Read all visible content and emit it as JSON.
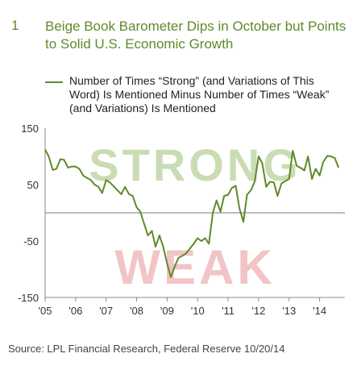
{
  "figure_number": "1",
  "title": "Beige Book Barometer Dips in October but Points to Solid U.S. Economic Growth",
  "legend_label": "Number of Times “Strong” (and Variations of This Word) Is Mentioned Minus Number of Times “Weak” (and Variations) Is Mentioned",
  "source": "Source: LPL Financial Research, Federal Reserve   10/20/14",
  "watermarks": {
    "strong": "STRONG",
    "weak": "WEAK"
  },
  "colors": {
    "line": "#5f8a2a",
    "strong_watermark": "#c9dcb3",
    "weak_watermark": "#f1c5c5",
    "axis": "#888888",
    "zero_line": "#7a7a7a"
  },
  "chart_data": {
    "type": "line",
    "title": "Beige Book Barometer Dips in October but Points to Solid U.S. Economic Growth",
    "xlabel": "",
    "ylabel": "",
    "xlim": [
      2005,
      2014.83
    ],
    "ylim": [
      -150,
      150
    ],
    "yticks": [
      150,
      50,
      -50,
      -150
    ],
    "xticks": [
      {
        "v": 2005,
        "label": "'05"
      },
      {
        "v": 2006,
        "label": "'06"
      },
      {
        "v": 2007,
        "label": "'07"
      },
      {
        "v": 2008,
        "label": "'08"
      },
      {
        "v": 2009,
        "label": "'09"
      },
      {
        "v": 2010,
        "label": "'10"
      },
      {
        "v": 2011,
        "label": "'11"
      },
      {
        "v": 2012,
        "label": "'12"
      },
      {
        "v": 2013,
        "label": "'13"
      },
      {
        "v": 2014,
        "label": "'14"
      }
    ],
    "zero_line": 0,
    "series": [
      {
        "name": "Number of Times “Strong” (and Variations of This Word) Is Mentioned Minus Number of Times “Weak” (and Variations) Is Mentioned",
        "points": [
          [
            2005.0,
            112
          ],
          [
            2005.12,
            100
          ],
          [
            2005.25,
            76
          ],
          [
            2005.37,
            78
          ],
          [
            2005.5,
            95
          ],
          [
            2005.62,
            94
          ],
          [
            2005.75,
            80
          ],
          [
            2005.87,
            82
          ],
          [
            2006.0,
            82
          ],
          [
            2006.12,
            78
          ],
          [
            2006.25,
            66
          ],
          [
            2006.37,
            62
          ],
          [
            2006.5,
            58
          ],
          [
            2006.62,
            50
          ],
          [
            2006.75,
            46
          ],
          [
            2006.87,
            35
          ],
          [
            2007.0,
            58
          ],
          [
            2007.12,
            54
          ],
          [
            2007.25,
            47
          ],
          [
            2007.37,
            40
          ],
          [
            2007.5,
            33
          ],
          [
            2007.62,
            46
          ],
          [
            2007.75,
            33
          ],
          [
            2007.87,
            30
          ],
          [
            2008.0,
            10
          ],
          [
            2008.12,
            2
          ],
          [
            2008.25,
            -20
          ],
          [
            2008.37,
            -40
          ],
          [
            2008.5,
            -32
          ],
          [
            2008.62,
            -60
          ],
          [
            2008.75,
            -40
          ],
          [
            2008.87,
            -60
          ],
          [
            2009.0,
            -90
          ],
          [
            2009.12,
            -114
          ],
          [
            2009.25,
            -95
          ],
          [
            2009.37,
            -80
          ],
          [
            2009.5,
            -76
          ],
          [
            2009.62,
            -72
          ],
          [
            2009.75,
            -63
          ],
          [
            2009.87,
            -55
          ],
          [
            2010.0,
            -45
          ],
          [
            2010.12,
            -50
          ],
          [
            2010.25,
            -45
          ],
          [
            2010.37,
            -55
          ],
          [
            2010.5,
            0
          ],
          [
            2010.62,
            22
          ],
          [
            2010.75,
            2
          ],
          [
            2010.87,
            30
          ],
          [
            2011.0,
            32
          ],
          [
            2011.12,
            44
          ],
          [
            2011.25,
            48
          ],
          [
            2011.37,
            8
          ],
          [
            2011.5,
            -16
          ],
          [
            2011.62,
            32
          ],
          [
            2011.75,
            40
          ],
          [
            2011.87,
            55
          ],
          [
            2012.0,
            100
          ],
          [
            2012.12,
            88
          ],
          [
            2012.25,
            46
          ],
          [
            2012.37,
            55
          ],
          [
            2012.5,
            54
          ],
          [
            2012.62,
            30
          ],
          [
            2012.75,
            52
          ],
          [
            2012.87,
            56
          ],
          [
            2013.0,
            60
          ],
          [
            2013.12,
            110
          ],
          [
            2013.25,
            83
          ],
          [
            2013.37,
            80
          ],
          [
            2013.5,
            75
          ],
          [
            2013.62,
            100
          ],
          [
            2013.75,
            60
          ],
          [
            2013.87,
            78
          ],
          [
            2014.0,
            66
          ],
          [
            2014.12,
            90
          ],
          [
            2014.25,
            101
          ],
          [
            2014.37,
            100
          ],
          [
            2014.5,
            97
          ],
          [
            2014.62,
            80
          ]
        ]
      }
    ]
  }
}
